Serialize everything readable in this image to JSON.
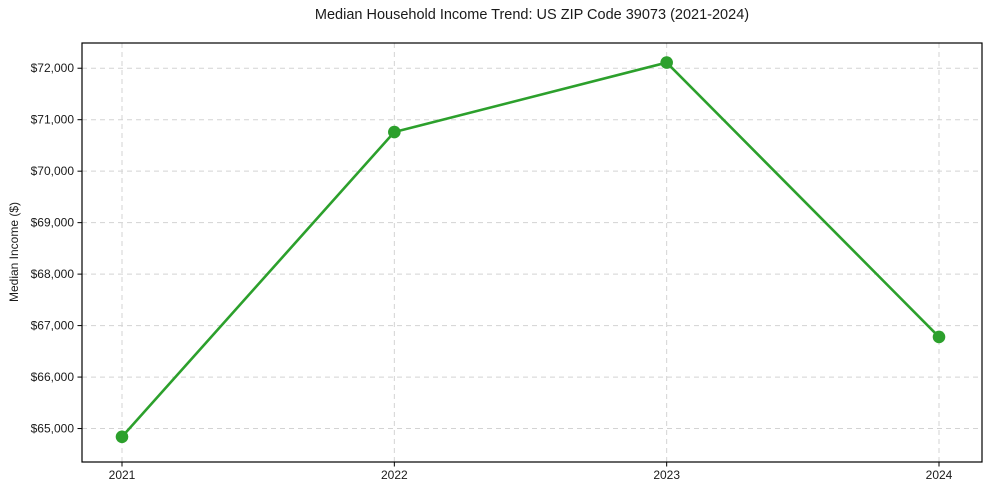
{
  "chart_data": {
    "type": "line",
    "title": "Median Household Income Trend: US ZIP Code 39073 (2021-2024)",
    "xlabel": "",
    "ylabel": "Median Income ($)",
    "categories": [
      "2021",
      "2022",
      "2023",
      "2024"
    ],
    "series": [
      {
        "name": "Median Household Income",
        "values": [
          64840,
          70760,
          72110,
          66780
        ]
      }
    ],
    "ytick_values": [
      65000,
      66000,
      67000,
      68000,
      69000,
      70000,
      71000,
      72000
    ],
    "ytick_labels": [
      "$65,000",
      "$66,000",
      "$67,000",
      "$68,000",
      "$69,000",
      "$70,000",
      "$71,000",
      "$72,000"
    ],
    "ylim": [
      64350,
      72490
    ],
    "grid": true,
    "grid_style": "dashed",
    "legend_position": "none",
    "line_color": "#2ca02c",
    "marker": "circle",
    "marker_color": "#2ca02c",
    "background_color": "#ffffff",
    "frame_color": "#000000",
    "grid_color": "#d3d3d3",
    "text_color": "#1a1a1a"
  }
}
